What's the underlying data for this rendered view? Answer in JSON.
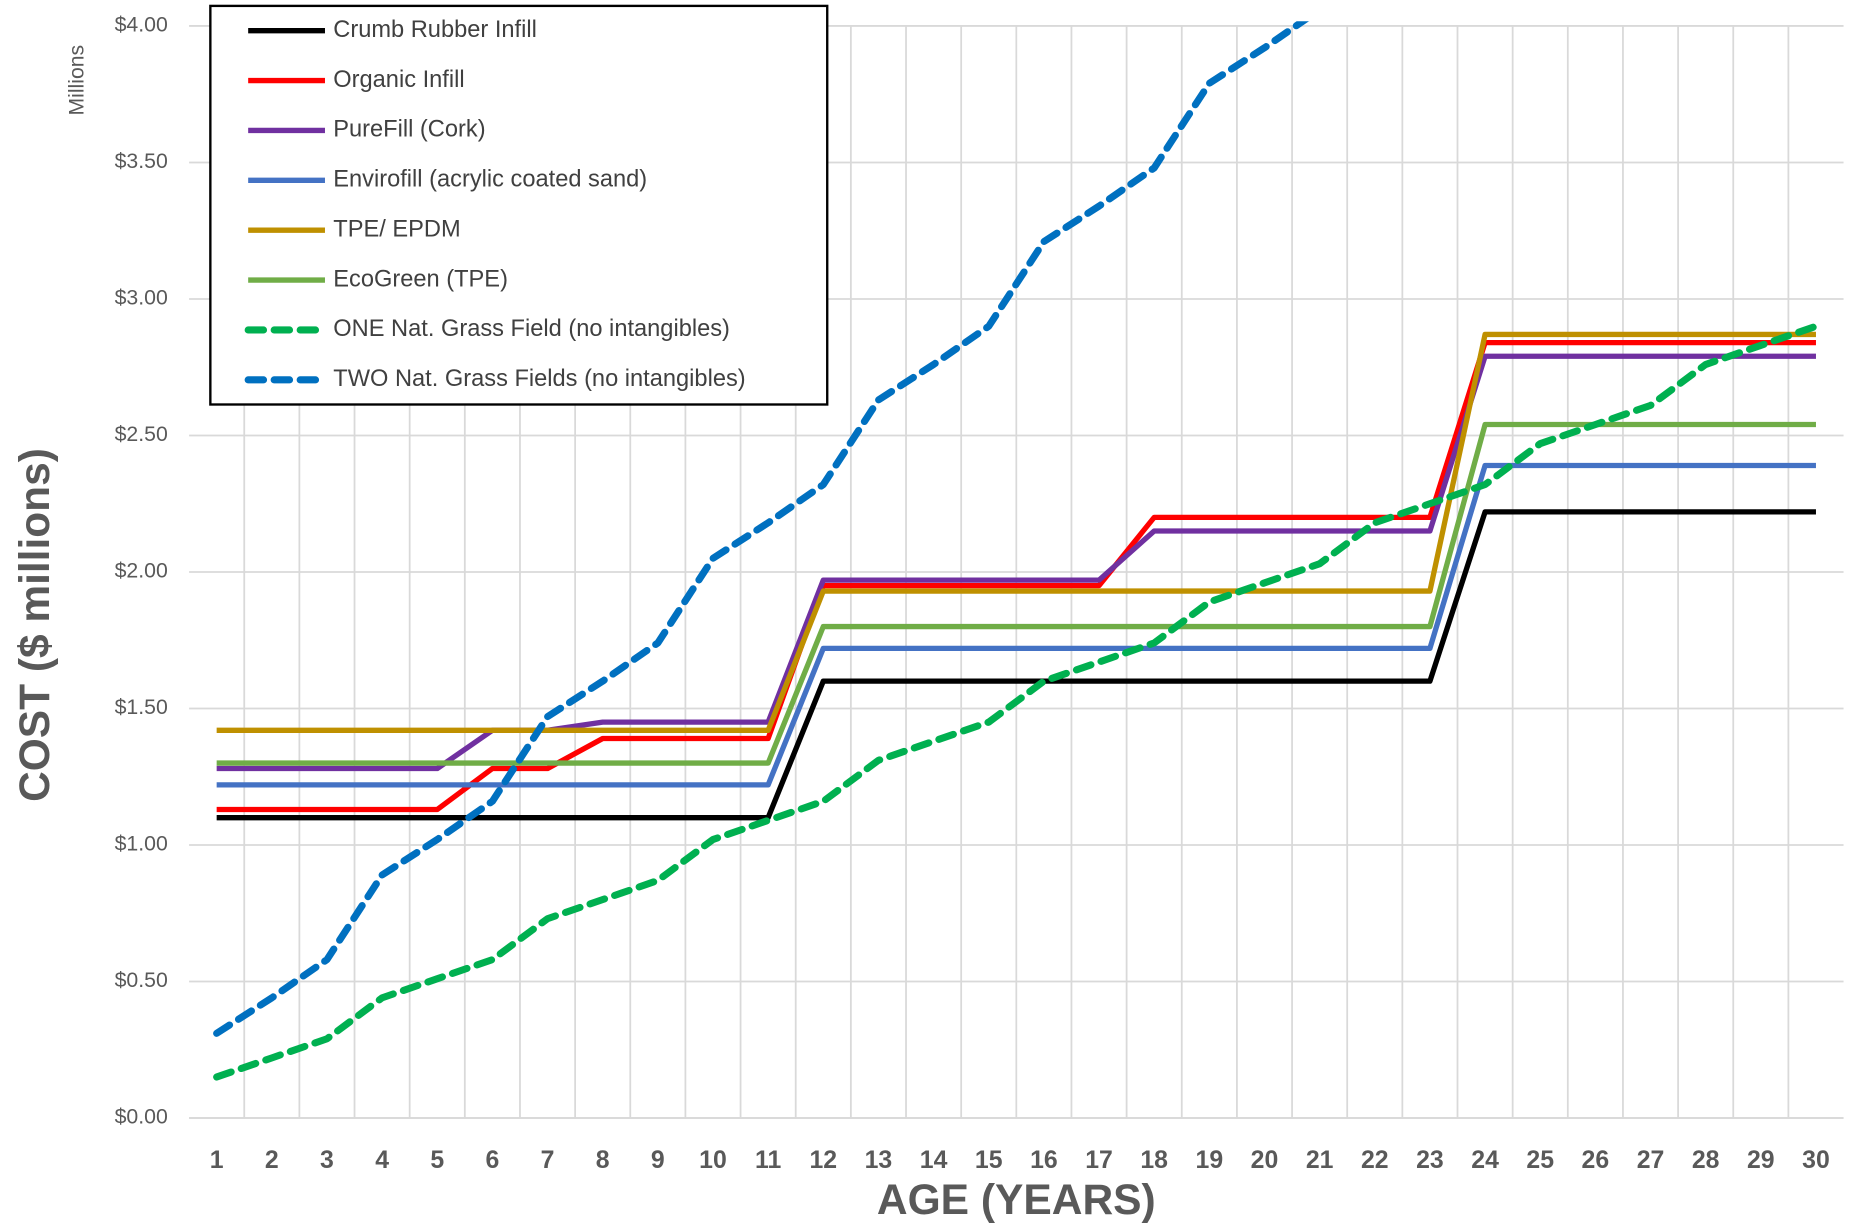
{
  "chart_data": {
    "type": "line",
    "y_label": "COST ($ millions)",
    "x_label": "AGE (YEARS)",
    "y_unit": "Millions",
    "categories": [
      "1",
      "2",
      "3",
      "4",
      "5",
      "6",
      "7",
      "8",
      "9",
      "10",
      "11",
      "12",
      "13",
      "14",
      "15",
      "16",
      "17",
      "18",
      "19",
      "20",
      "21",
      "22",
      "23",
      "24",
      "25",
      "26",
      "27",
      "28",
      "29",
      "30"
    ],
    "ylim": [
      0,
      4
    ],
    "yticks": [
      {
        "value": 0,
        "label": "$0.00"
      },
      {
        "value": 0.5,
        "label": "$0.50"
      },
      {
        "value": 1,
        "label": "$1.00"
      },
      {
        "value": 1.5,
        "label": "$1.50"
      },
      {
        "value": 2,
        "label": "$2.00"
      },
      {
        "value": 2.5,
        "label": "$2.50"
      },
      {
        "value": 3,
        "label": "$3.00"
      },
      {
        "value": 3.5,
        "label": "$3.50"
      },
      {
        "value": 4,
        "label": "$4.00"
      }
    ],
    "grid": true,
    "legend": "top-left",
    "series": [
      {
        "name": "Crumb Rubber Infill",
        "color": "#000000",
        "dashed": false,
        "values": [
          1.1,
          1.1,
          1.1,
          1.1,
          1.1,
          1.1,
          1.1,
          1.1,
          1.1,
          1.1,
          1.1,
          1.6,
          1.6,
          1.6,
          1.6,
          1.6,
          1.6,
          1.6,
          1.6,
          1.6,
          1.6,
          1.6,
          1.6,
          2.22,
          2.22,
          2.22,
          2.22,
          2.22,
          2.22,
          2.22
        ]
      },
      {
        "name": "Organic Infill",
        "color": "#ff0000",
        "dashed": false,
        "values": [
          1.13,
          1.13,
          1.13,
          1.13,
          1.13,
          1.28,
          1.28,
          1.39,
          1.39,
          1.39,
          1.39,
          1.95,
          1.95,
          1.95,
          1.95,
          1.95,
          1.95,
          2.2,
          2.2,
          2.2,
          2.2,
          2.2,
          2.2,
          2.84,
          2.84,
          2.84,
          2.84,
          2.84,
          2.84,
          2.84
        ]
      },
      {
        "name": "PureFill (Cork)",
        "color": "#7030a0",
        "dashed": false,
        "values": [
          1.28,
          1.28,
          1.28,
          1.28,
          1.28,
          1.42,
          1.42,
          1.45,
          1.45,
          1.45,
          1.45,
          1.97,
          1.97,
          1.97,
          1.97,
          1.97,
          1.97,
          2.15,
          2.15,
          2.15,
          2.15,
          2.15,
          2.15,
          2.79,
          2.79,
          2.79,
          2.79,
          2.79,
          2.79,
          2.79
        ]
      },
      {
        "name": "Envirofill (acrylic coated sand)",
        "color": "#4472c4",
        "dashed": false,
        "values": [
          1.22,
          1.22,
          1.22,
          1.22,
          1.22,
          1.22,
          1.22,
          1.22,
          1.22,
          1.22,
          1.22,
          1.72,
          1.72,
          1.72,
          1.72,
          1.72,
          1.72,
          1.72,
          1.72,
          1.72,
          1.72,
          1.72,
          1.72,
          2.39,
          2.39,
          2.39,
          2.39,
          2.39,
          2.39,
          2.39
        ]
      },
      {
        "name": "TPE/ EPDM",
        "color": "#bf9000",
        "dashed": false,
        "values": [
          1.42,
          1.42,
          1.42,
          1.42,
          1.42,
          1.42,
          1.42,
          1.42,
          1.42,
          1.42,
          1.42,
          1.93,
          1.93,
          1.93,
          1.93,
          1.93,
          1.93,
          1.93,
          1.93,
          1.93,
          1.93,
          1.93,
          1.93,
          2.87,
          2.87,
          2.87,
          2.87,
          2.87,
          2.87,
          2.87
        ]
      },
      {
        "name": "EcoGreen (TPE)",
        "color": "#70ad47",
        "dashed": false,
        "values": [
          1.3,
          1.3,
          1.3,
          1.3,
          1.3,
          1.3,
          1.3,
          1.3,
          1.3,
          1.3,
          1.3,
          1.8,
          1.8,
          1.8,
          1.8,
          1.8,
          1.8,
          1.8,
          1.8,
          1.8,
          1.8,
          1.8,
          1.8,
          2.54,
          2.54,
          2.54,
          2.54,
          2.54,
          2.54,
          2.54
        ]
      },
      {
        "name": "ONE Nat. Grass Field (no intangibles)",
        "color": "#00b050",
        "dashed": true,
        "values": [
          0.15,
          0.22,
          0.29,
          0.44,
          0.51,
          0.58,
          0.73,
          0.8,
          0.87,
          1.02,
          1.09,
          1.16,
          1.31,
          1.38,
          1.45,
          1.6,
          1.67,
          1.74,
          1.89,
          1.96,
          2.03,
          2.18,
          2.25,
          2.32,
          2.47,
          2.54,
          2.61,
          2.76,
          2.83,
          2.9
        ]
      },
      {
        "name": "TWO Nat. Grass Fields (no intangibles)",
        "color": "#0070c0",
        "dashed": true,
        "values": [
          0.31,
          0.44,
          0.58,
          0.89,
          1.02,
          1.16,
          1.47,
          1.6,
          1.74,
          2.05,
          2.18,
          2.32,
          2.63,
          2.76,
          2.9,
          3.21,
          3.34,
          3.48,
          3.79,
          3.92,
          4.06,
          null,
          null,
          null,
          null,
          null,
          null,
          null,
          null,
          null
        ]
      }
    ]
  }
}
